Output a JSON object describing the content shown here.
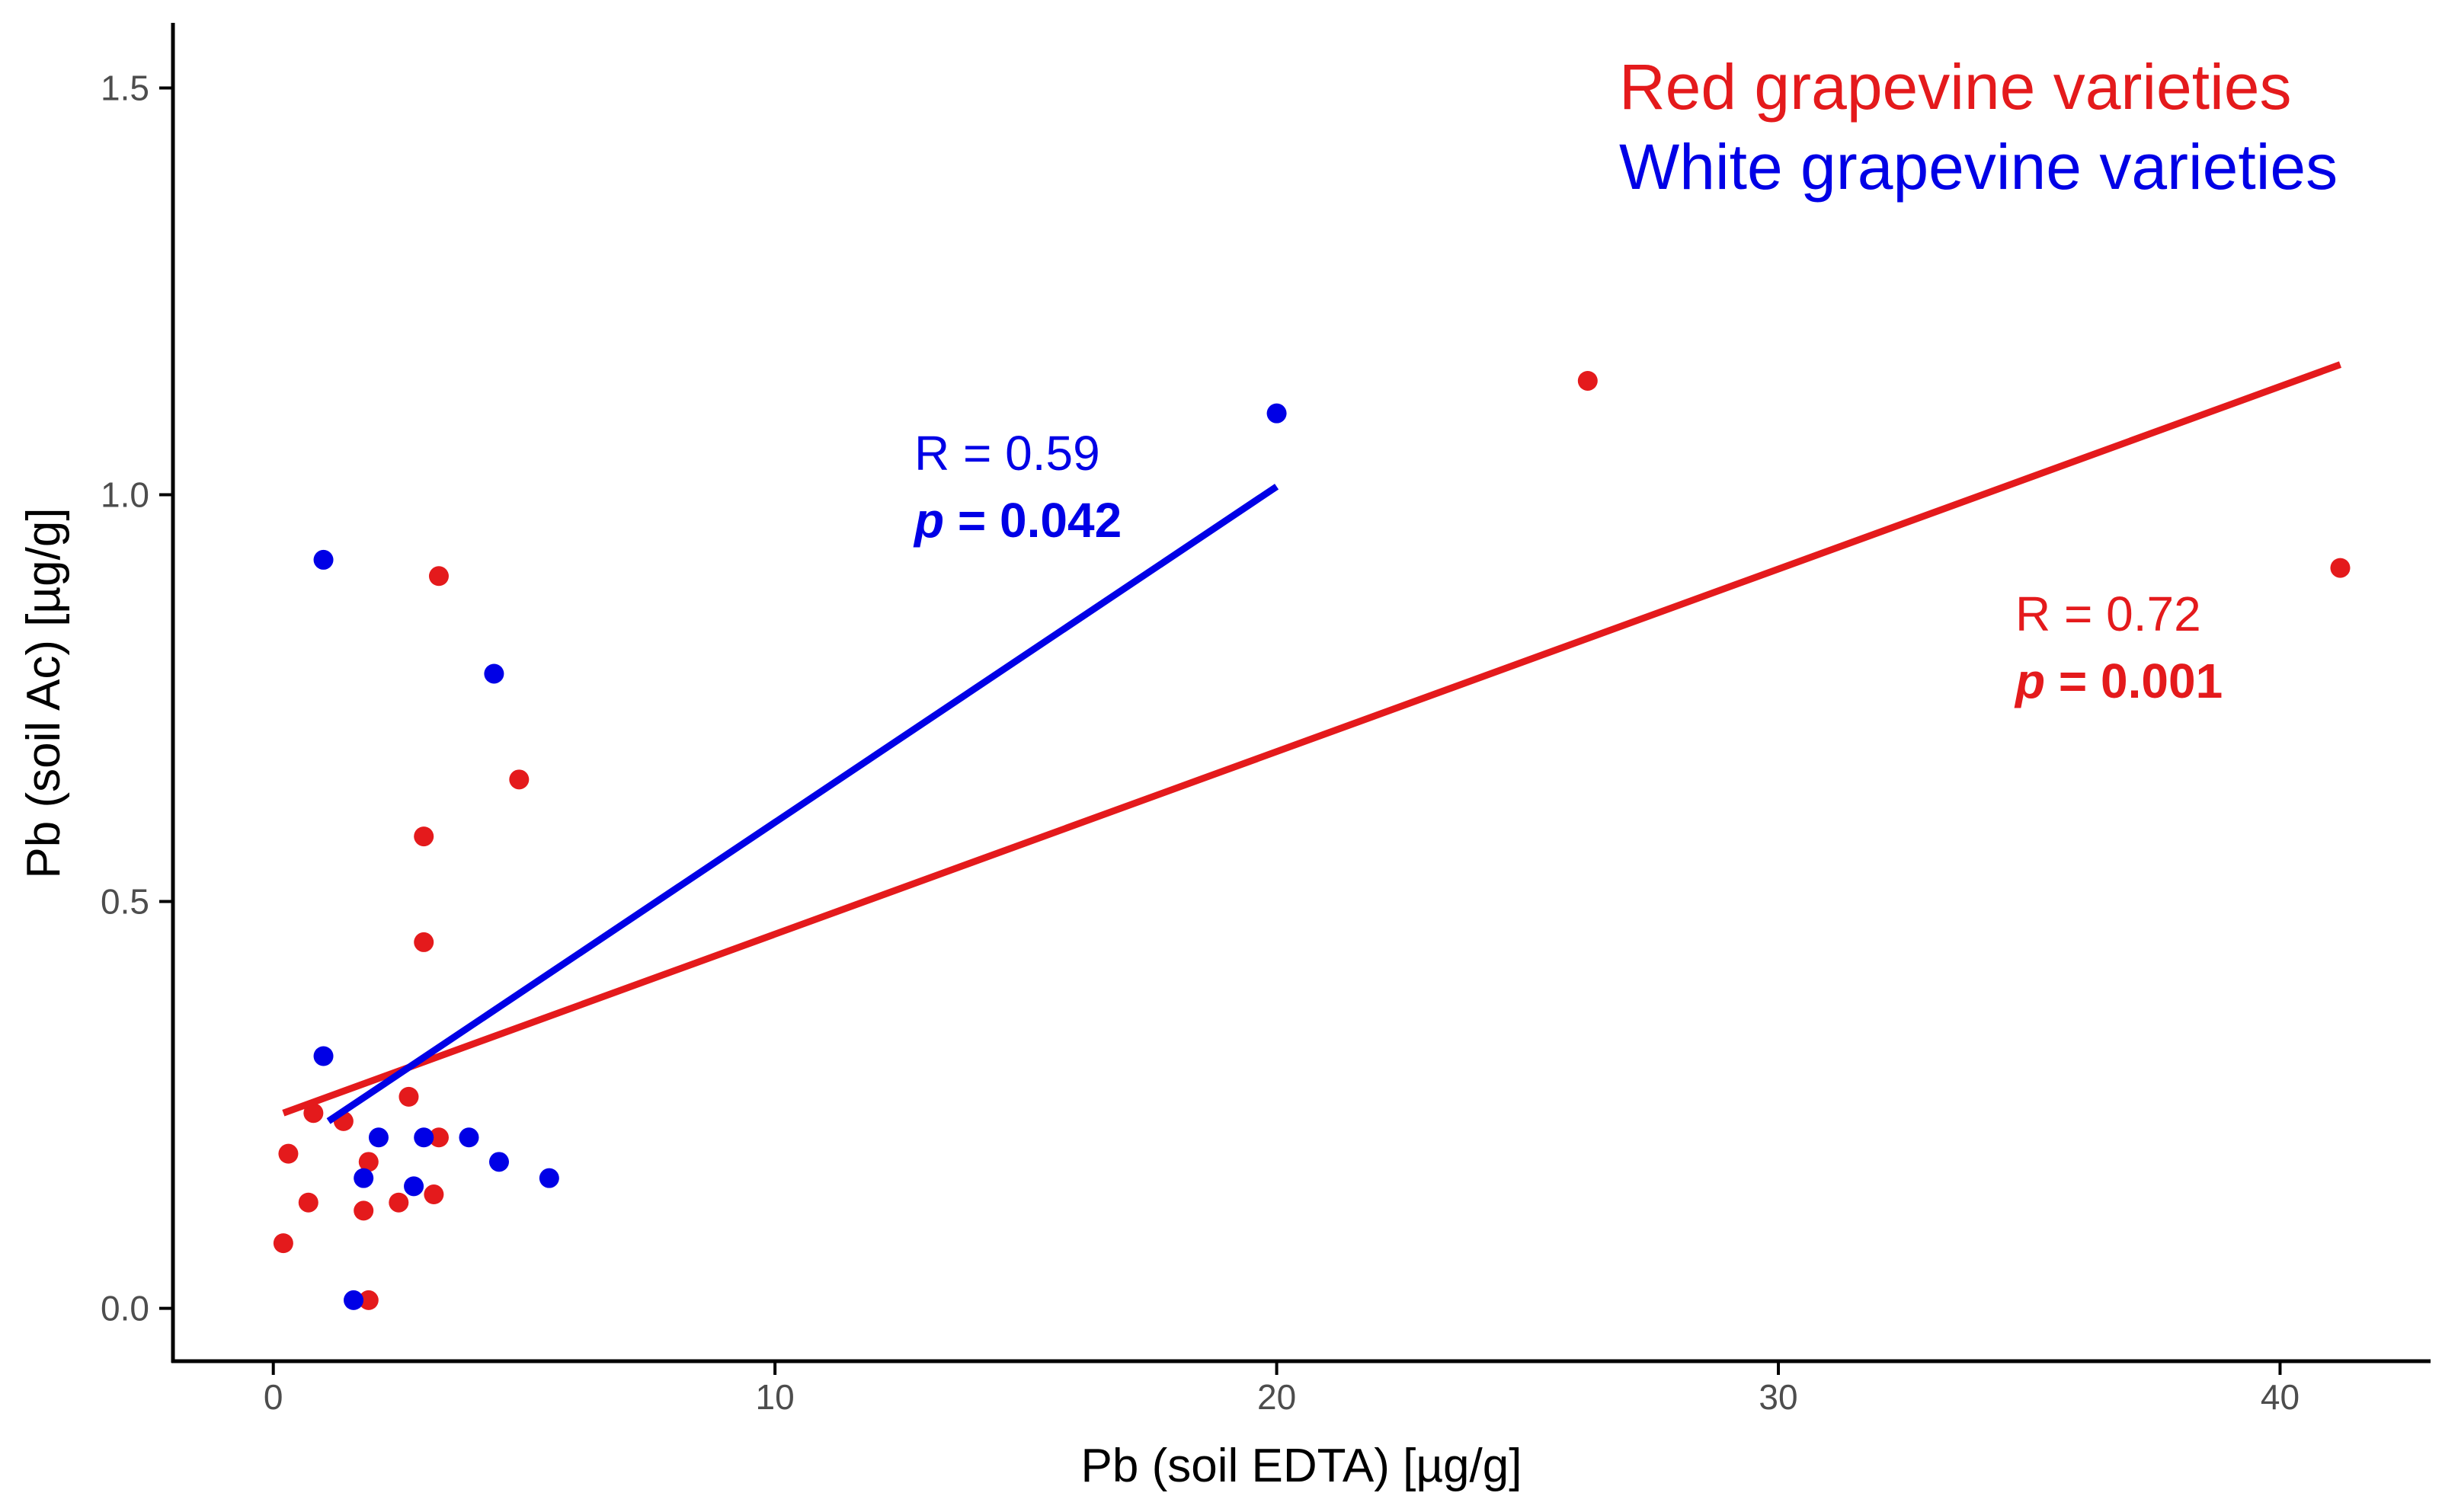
{
  "chart_data": {
    "type": "scatter",
    "title": "",
    "xlabel": "Pb (soil EDTA) [µg/g]",
    "ylabel": "Pb (soil Ac) [µg/g]",
    "xlim": [
      -2,
      43
    ],
    "ylim": [
      -0.065,
      1.58
    ],
    "xticks": [
      0,
      10,
      20,
      30,
      40
    ],
    "xtick_labels": [
      "0",
      "10",
      "20",
      "30",
      "40"
    ],
    "yticks": [
      0.0,
      0.5,
      1.0,
      1.5
    ],
    "ytick_labels": [
      "0.0",
      "0.5",
      "1.0",
      "1.5"
    ],
    "grid": false,
    "legend_position": "top-right",
    "series": [
      {
        "name": "Red grapevine varieties",
        "color": "#e41a1c",
        "points": [
          [
            0.2,
            0.08
          ],
          [
            0.3,
            0.19
          ],
          [
            0.7,
            0.13
          ],
          [
            0.8,
            0.24
          ],
          [
            1.4,
            0.23
          ],
          [
            1.8,
            0.12
          ],
          [
            1.9,
            0.01
          ],
          [
            1.9,
            0.18
          ],
          [
            2.5,
            0.13
          ],
          [
            2.7,
            0.26
          ],
          [
            3.0,
            0.45
          ],
          [
            3.0,
            0.58
          ],
          [
            3.2,
            0.14
          ],
          [
            3.3,
            0.21
          ],
          [
            3.3,
            0.9
          ],
          [
            4.9,
            0.65
          ],
          [
            26.2,
            1.14
          ],
          [
            41.2,
            0.91
          ]
        ],
        "fit": {
          "x0": 0.2,
          "y0": 0.24,
          "x1": 41.2,
          "y1": 1.16
        },
        "annotation": {
          "r_text": "R = 0.72",
          "p_symbol": "p",
          "p_value": " = 0.001"
        }
      },
      {
        "name": "White grapevine varieties",
        "color": "#0000e6",
        "points": [
          [
            1.0,
            0.31
          ],
          [
            1.0,
            0.92
          ],
          [
            1.6,
            0.01
          ],
          [
            1.8,
            0.16
          ],
          [
            2.1,
            0.21
          ],
          [
            2.8,
            0.15
          ],
          [
            3.0,
            0.21
          ],
          [
            3.9,
            0.21
          ],
          [
            4.4,
            0.78
          ],
          [
            4.5,
            0.18
          ],
          [
            5.5,
            0.16
          ],
          [
            20.0,
            1.1
          ]
        ],
        "fit": {
          "x0": 1.1,
          "y0": 0.23,
          "x1": 20.0,
          "y1": 1.01
        },
        "annotation": {
          "r_text": "R = 0.59",
          "p_symbol": "p",
          "p_value": " = 0.042"
        }
      }
    ]
  }
}
